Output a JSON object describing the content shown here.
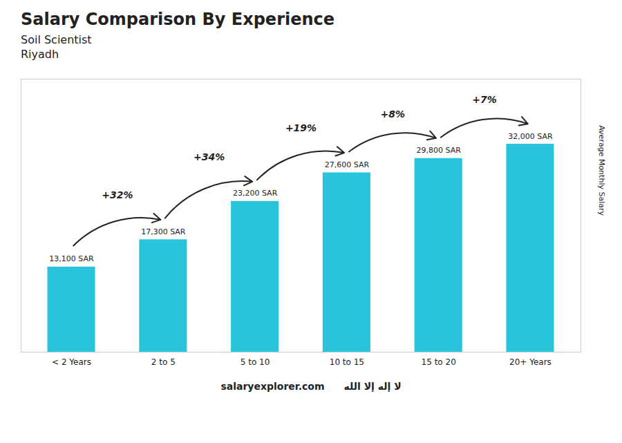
{
  "chart_data": {
    "type": "bar",
    "title": "Salary Comparison By Experience",
    "subtitle": [
      "Soil Scientist",
      "Riyadh"
    ],
    "ylabel": "Average Monthly Salary",
    "categories": [
      "< 2 Years",
      "2 to 5",
      "5 to 10",
      "10 to 15",
      "15 to 20",
      "20+ Years"
    ],
    "values": [
      13100,
      17300,
      23200,
      27600,
      29800,
      32000
    ],
    "value_labels": [
      "13,100 SAR",
      "17,300 SAR",
      "23,200 SAR",
      "27,600 SAR",
      "29,800 SAR",
      "32,000 SAR"
    ],
    "data_labels": true,
    "color": "#29c4dc",
    "ylim": [
      0,
      42000
    ],
    "tick_labels": "x",
    "grid": false,
    "annotations": [
      {
        "text": "+32%",
        "from": "< 2 Years",
        "to": "2 to 5"
      },
      {
        "text": "+34%",
        "from": "2 to 5",
        "to": "5 to 10"
      },
      {
        "text": "+19%",
        "from": "5 to 10",
        "to": "10 to 15"
      },
      {
        "text": "+8%",
        "from": "10 to 15",
        "to": "15 to 20"
      },
      {
        "text": "+7%",
        "from": "15 to 20",
        "to": "20+ Years"
      },
      {
        "text": "salaryexplorer.com"
      },
      {
        "text": "لا إله إلا الله"
      }
    ]
  }
}
